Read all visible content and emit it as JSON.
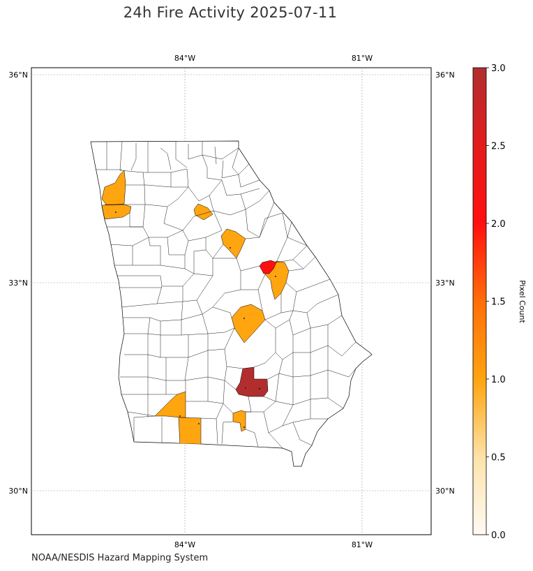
{
  "title": "24h Fire Activity 2025-07-11",
  "source": "NOAA/NESDIS Hazard Mapping System",
  "map": {
    "region": "Georgia counties",
    "lon_range": [
      -86.6,
      -79.8
    ],
    "lat_range": [
      29.2,
      36.0
    ],
    "gridlines": {
      "lon": [
        {
          "value": -84,
          "label": "84°W"
        },
        {
          "value": -81,
          "label": "81°W"
        }
      ],
      "lat": [
        {
          "value": 36,
          "label": "36°N"
        },
        {
          "value": 33,
          "label": "33°N"
        },
        {
          "value": 30,
          "label": "30°N"
        }
      ]
    },
    "county_fill_default": "#ffffff",
    "county_outline": "#000000",
    "highlighted_counties": [
      {
        "value": 1,
        "color": "#ffa510"
      },
      {
        "value": 1,
        "color": "#ffa510"
      },
      {
        "value": 1,
        "color": "#ffa510"
      },
      {
        "value": 1,
        "color": "#ffa510"
      },
      {
        "value": 1,
        "color": "#ffa510"
      },
      {
        "value": 1,
        "color": "#ffa510"
      },
      {
        "value": 1,
        "color": "#ffa510"
      },
      {
        "value": 1,
        "color": "#ffa510"
      },
      {
        "value": 1,
        "color": "#ffa510"
      },
      {
        "value": 2,
        "color": "#ff0f0f"
      },
      {
        "value": 3,
        "color": "#b22e2e"
      }
    ]
  },
  "colorbar": {
    "label": "Pixel Count",
    "min": 0,
    "max": 3,
    "ticks": [
      "0.0",
      "0.5",
      "1.0",
      "1.5",
      "2.0",
      "2.5",
      "3.0"
    ],
    "tick_values": [
      0,
      0.5,
      1,
      1.5,
      2,
      2.5,
      3
    ],
    "colors": [
      "#fff8ec",
      "#fde0a4",
      "#ffa510",
      "#ff6a0a",
      "#ff0f0f",
      "#e01b1b",
      "#b22e2e"
    ]
  }
}
